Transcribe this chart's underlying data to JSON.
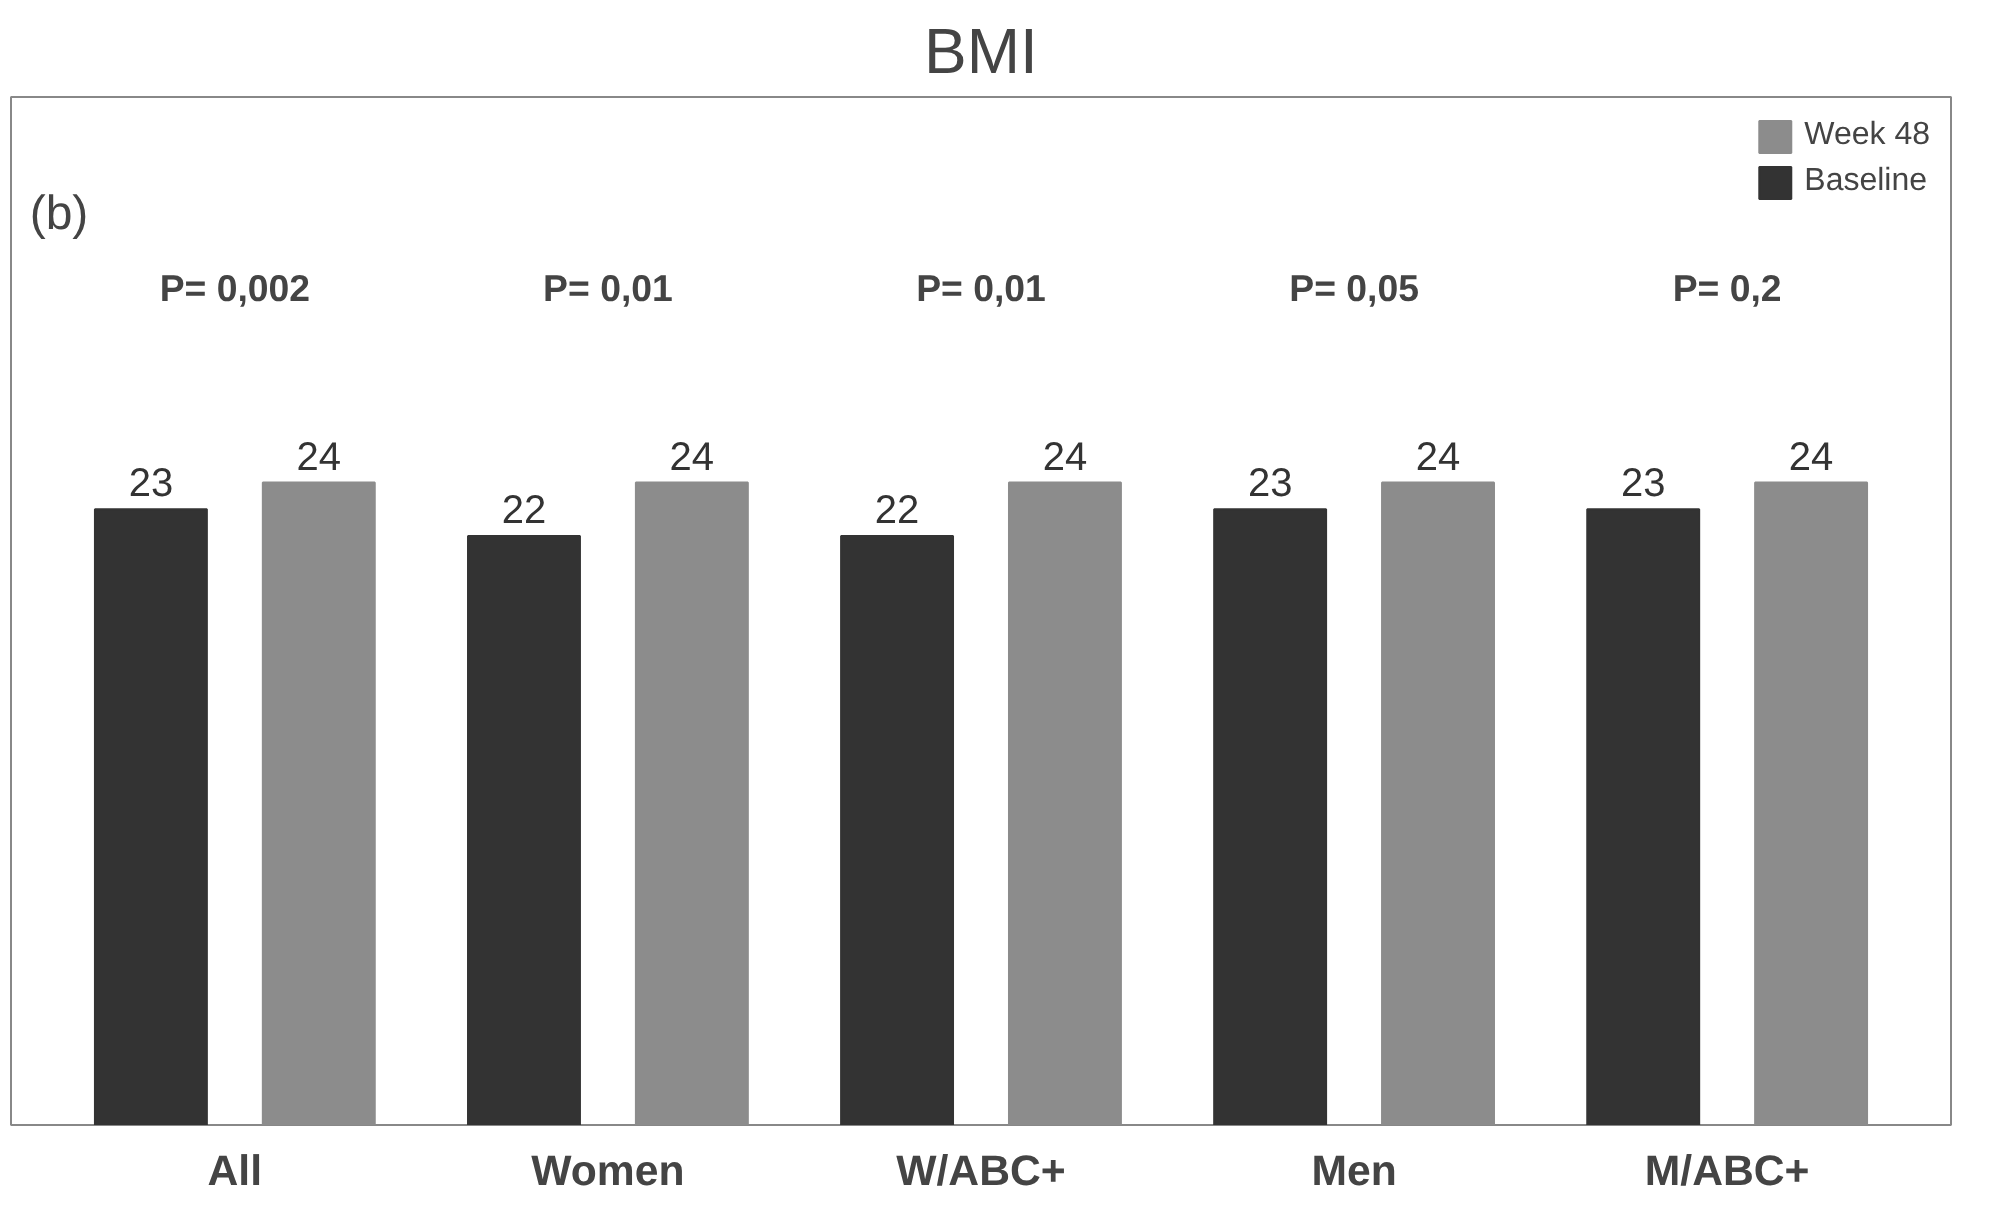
{
  "chart_data": {
    "type": "bar",
    "title": "BMI",
    "categories": [
      "All",
      "Women",
      "W/ABC+",
      "Men",
      "M/ABC+"
    ],
    "series": [
      {
        "name": "Baseline",
        "color": "#333333",
        "values": [
          23,
          22,
          22,
          23,
          23
        ]
      },
      {
        "name": "Week 48",
        "color": "#8c8c8c",
        "values": [
          24,
          24,
          24,
          24,
          24
        ]
      }
    ],
    "data_labels": true,
    "legend": "top right",
    "grid": false,
    "tick_labels": "x",
    "annotations": [
      "(b)",
      "P= 0,002",
      "P= 0,01",
      "P= 0,01",
      "P= 0,05",
      "P= 0,2"
    ]
  }
}
